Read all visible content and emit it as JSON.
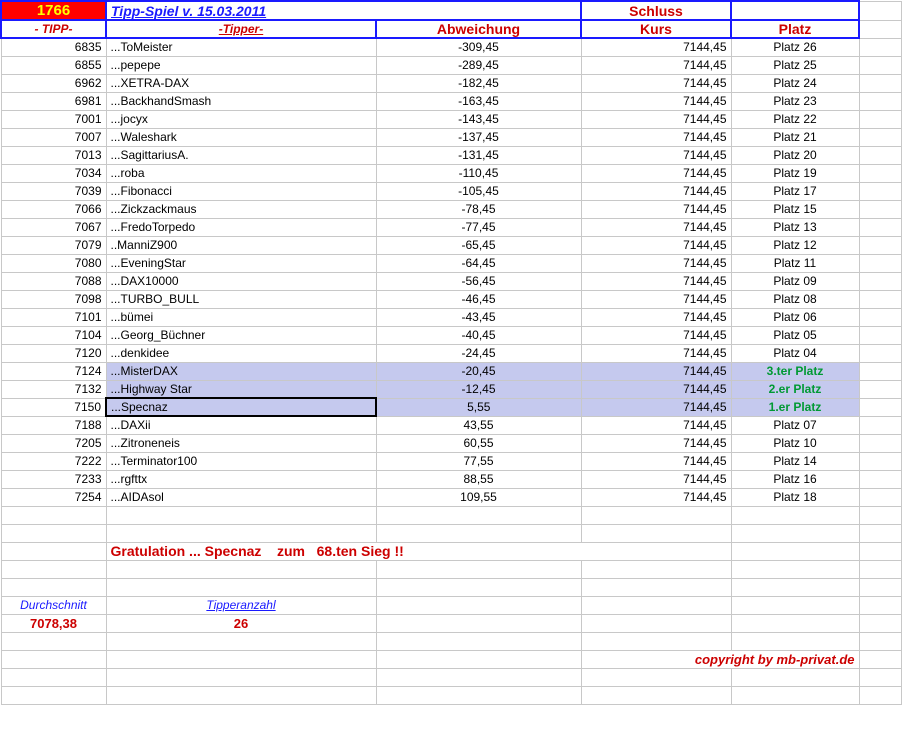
{
  "header": {
    "number": "1766",
    "title": "Tipp-Spiel v. 15.03.2011",
    "schluss": "Schluss",
    "tipp": "- TIPP-",
    "tipper": "-Tipper-",
    "abw": "Abweichung",
    "kurs": "Kurs",
    "platz": "Platz"
  },
  "rows": [
    {
      "tipp": "6835",
      "tipper": "...ToMeister",
      "abw": "-309,45",
      "kurs": "7144,45",
      "platz": "Platz 26",
      "hl": false,
      "green": false
    },
    {
      "tipp": "6855",
      "tipper": "...pepepe",
      "abw": "-289,45",
      "kurs": "7144,45",
      "platz": "Platz 25",
      "hl": false,
      "green": false
    },
    {
      "tipp": "6962",
      "tipper": "...XETRA-DAX",
      "abw": "-182,45",
      "kurs": "7144,45",
      "platz": "Platz 24",
      "hl": false,
      "green": false
    },
    {
      "tipp": "6981",
      "tipper": "...BackhandSmash",
      "abw": "-163,45",
      "kurs": "7144,45",
      "platz": "Platz 23",
      "hl": false,
      "green": false
    },
    {
      "tipp": "7001",
      "tipper": "...jocyx",
      "abw": "-143,45",
      "kurs": "7144,45",
      "platz": "Platz 22",
      "hl": false,
      "green": false
    },
    {
      "tipp": "7007",
      "tipper": "...Waleshark",
      "abw": "-137,45",
      "kurs": "7144,45",
      "platz": "Platz 21",
      "hl": false,
      "green": false
    },
    {
      "tipp": "7013",
      "tipper": "...SagittariusA.",
      "abw": "-131,45",
      "kurs": "7144,45",
      "platz": "Platz 20",
      "hl": false,
      "green": false
    },
    {
      "tipp": "7034",
      "tipper": "...roba",
      "abw": "-110,45",
      "kurs": "7144,45",
      "platz": "Platz 19",
      "hl": false,
      "green": false
    },
    {
      "tipp": "7039",
      "tipper": "...Fibonacci",
      "abw": "-105,45",
      "kurs": "7144,45",
      "platz": "Platz 17",
      "hl": false,
      "green": false
    },
    {
      "tipp": "7066",
      "tipper": "...Zickzackmaus",
      "abw": "-78,45",
      "kurs": "7144,45",
      "platz": "Platz 15",
      "hl": false,
      "green": false
    },
    {
      "tipp": "7067",
      "tipper": "...FredoTorpedo",
      "abw": "-77,45",
      "kurs": "7144,45",
      "platz": "Platz 13",
      "hl": false,
      "green": false
    },
    {
      "tipp": "7079",
      "tipper": "..ManniZ900",
      "abw": "-65,45",
      "kurs": "7144,45",
      "platz": "Platz 12",
      "hl": false,
      "green": false
    },
    {
      "tipp": "7080",
      "tipper": "...EveningStar",
      "abw": "-64,45",
      "kurs": "7144,45",
      "platz": "Platz 11",
      "hl": false,
      "green": false
    },
    {
      "tipp": "7088",
      "tipper": "...DAX10000",
      "abw": "-56,45",
      "kurs": "7144,45",
      "platz": "Platz 09",
      "hl": false,
      "green": false
    },
    {
      "tipp": "7098",
      "tipper": "...TURBO_BULL",
      "abw": "-46,45",
      "kurs": "7144,45",
      "platz": "Platz 08",
      "hl": false,
      "green": false
    },
    {
      "tipp": "7101",
      "tipper": "...bümei",
      "abw": "-43,45",
      "kurs": "7144,45",
      "platz": "Platz 06",
      "hl": false,
      "green": false
    },
    {
      "tipp": "7104",
      "tipper": "...Georg_Büchner",
      "abw": "-40,45",
      "kurs": "7144,45",
      "platz": "Platz 05",
      "hl": false,
      "green": false
    },
    {
      "tipp": "7120",
      "tipper": "...denkidee",
      "abw": "-24,45",
      "kurs": "7144,45",
      "platz": "Platz 04",
      "hl": false,
      "green": false
    },
    {
      "tipp": "7124",
      "tipper": "...MisterDAX",
      "abw": "-20,45",
      "kurs": "7144,45",
      "platz": "3.ter Platz",
      "hl": true,
      "green": true
    },
    {
      "tipp": "7132",
      "tipper": "...Highway Star",
      "abw": "-12,45",
      "kurs": "7144,45",
      "platz": "2.er Platz",
      "hl": true,
      "green": true
    },
    {
      "tipp": "7150",
      "tipper": "...Specnaz",
      "abw": "5,55",
      "kurs": "7144,45",
      "platz": "1.er Platz",
      "hl": true,
      "green": true,
      "box": true
    },
    {
      "tipp": "7188",
      "tipper": "...DAXii",
      "abw": "43,55",
      "kurs": "7144,45",
      "platz": "Platz 07",
      "hl": false,
      "green": false
    },
    {
      "tipp": "7205",
      "tipper": "...Zitroneneis",
      "abw": "60,55",
      "kurs": "7144,45",
      "platz": "Platz 10",
      "hl": false,
      "green": false
    },
    {
      "tipp": "7222",
      "tipper": "...Terminator100",
      "abw": "77,55",
      "kurs": "7144,45",
      "platz": "Platz 14",
      "hl": false,
      "green": false
    },
    {
      "tipp": "7233",
      "tipper": "...rgfttx",
      "abw": "88,55",
      "kurs": "7144,45",
      "platz": "Platz 16",
      "hl": false,
      "green": false
    },
    {
      "tipp": "7254",
      "tipper": "...AIDAsol",
      "abw": "109,55",
      "kurs": "7144,45",
      "platz": "Platz 18",
      "hl": false,
      "green": false
    }
  ],
  "congrats": "Gratulation ... Specnaz    zum   68.ten Sieg !!",
  "summary": {
    "avg_label": "Durchschnitt",
    "avg_value": "7078,38",
    "count_label": "Tipperanzahl",
    "count_value": "26"
  },
  "copyright": "copyright by mb-privat.de"
}
